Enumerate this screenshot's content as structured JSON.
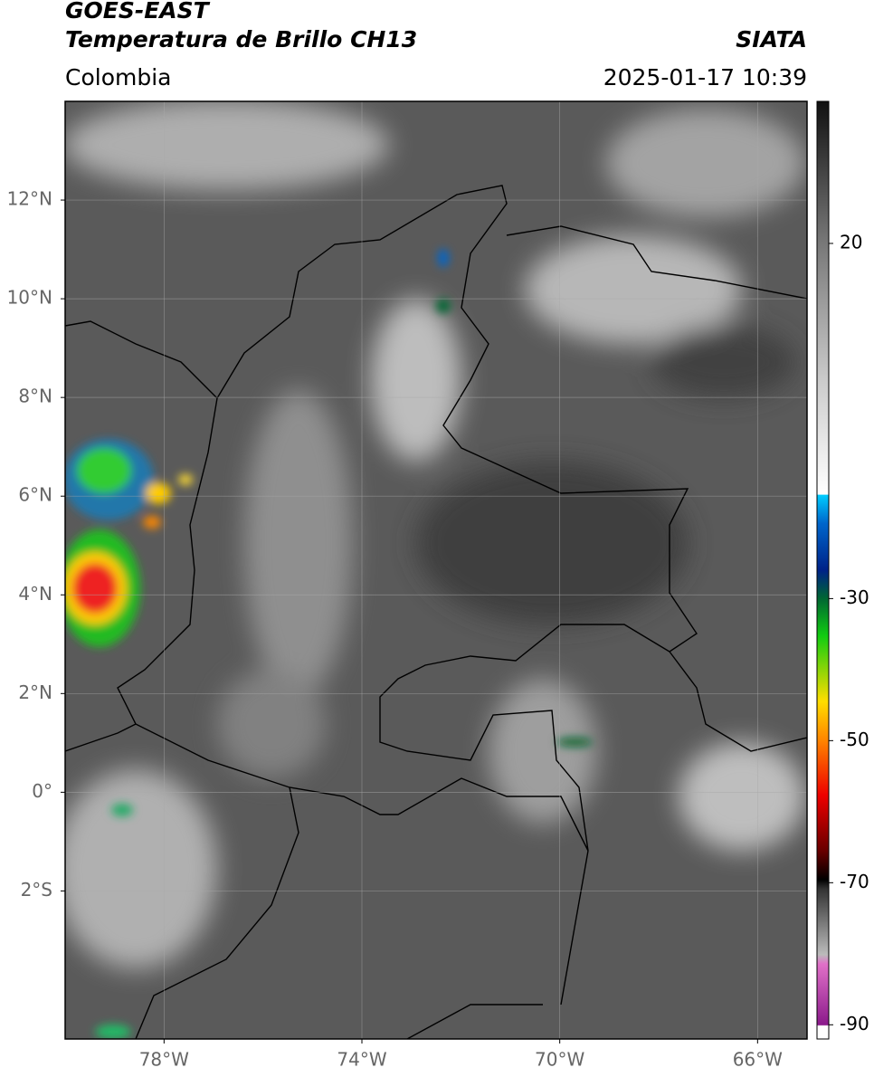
{
  "header": {
    "title": "GOES-EAST",
    "subtitle": "Temperatura de Brillo CH13",
    "source": "SIATA",
    "region": "Colombia",
    "timestamp": "2025-01-17 10:39"
  },
  "map": {
    "lon_lim": [
      -80,
      -65
    ],
    "lat_lim": [
      -5,
      14
    ],
    "lon_ticks": [
      {
        "value": -78,
        "label": "78°W"
      },
      {
        "value": -74,
        "label": "74°W"
      },
      {
        "value": -70,
        "label": "70°W"
      },
      {
        "value": -66,
        "label": "66°W"
      }
    ],
    "lat_ticks": [
      {
        "value": 12,
        "label": "12°N"
      },
      {
        "value": 10,
        "label": "10°N"
      },
      {
        "value": 8,
        "label": "8°N"
      },
      {
        "value": 6,
        "label": "6°N"
      },
      {
        "value": 4,
        "label": "4°N"
      },
      {
        "value": 2,
        "label": "2°N"
      },
      {
        "value": 0,
        "label": "0°"
      },
      {
        "value": -2,
        "label": "2°S"
      }
    ]
  },
  "colorbar": {
    "lim": [
      -92,
      40
    ],
    "ticks": [
      20,
      -30,
      -50,
      -70,
      -90
    ]
  }
}
